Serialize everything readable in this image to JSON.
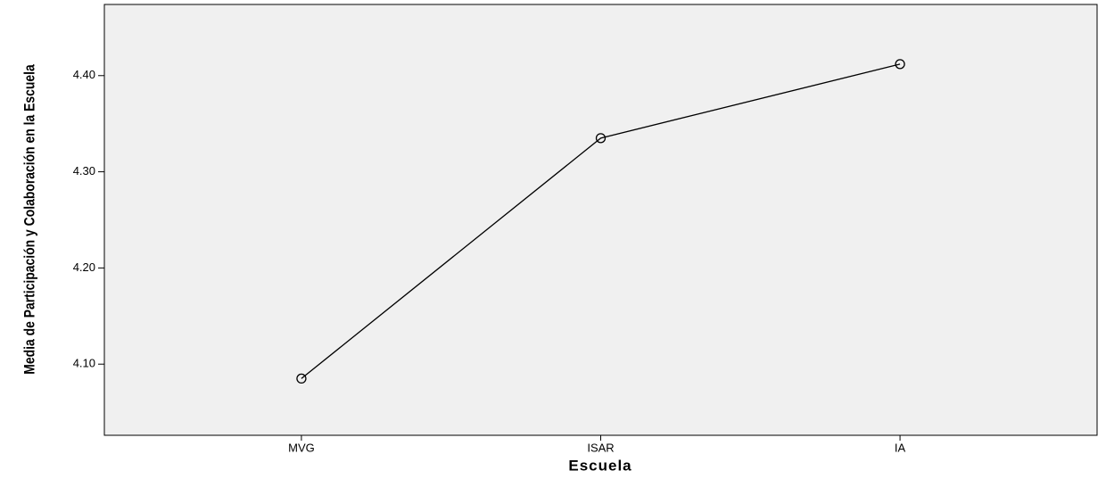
{
  "chart_data": {
    "type": "line",
    "xlabel": "Escuela",
    "ylabel": "Media de Participación y Colaboración en la Escuela",
    "categories": [
      "MVG",
      "ISAR",
      "IA"
    ],
    "series": [
      {
        "color": "#000000",
        "values": [
          4.085,
          4.335,
          4.412
        ]
      }
    ],
    "ylim": [
      4.026,
      4.474
    ],
    "yticks": [
      {
        "value": 4.1,
        "label": "4.10"
      },
      {
        "value": 4.2,
        "label": "4.20"
      },
      {
        "value": 4.3,
        "label": "4.30"
      },
      {
        "value": 4.4,
        "label": "4.40"
      }
    ],
    "grid": false
  }
}
